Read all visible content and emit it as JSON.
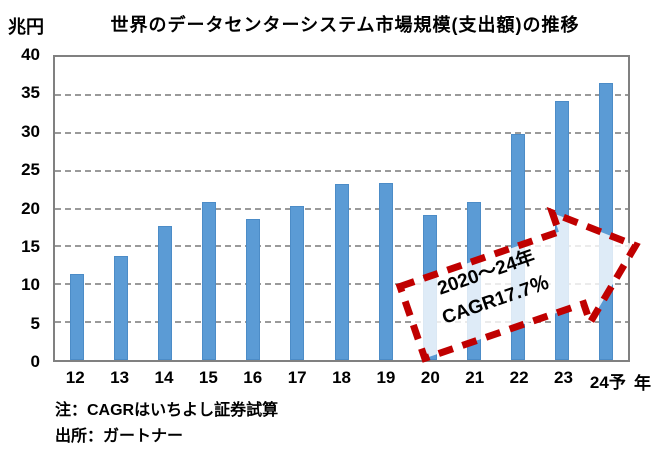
{
  "chart_data": {
    "type": "bar",
    "title": "世界のデータセンターシステム市場規模(支出額)の推移",
    "y_unit": "兆円",
    "x_unit": "年",
    "categories": [
      "12",
      "13",
      "14",
      "15",
      "16",
      "17",
      "18",
      "19",
      "20",
      "21",
      "22",
      "23",
      "24予"
    ],
    "values": [
      11.3,
      13.7,
      17.7,
      20.8,
      18.6,
      20.3,
      23.2,
      23.4,
      19.1,
      20.8,
      29.9,
      34.2,
      36.6
    ],
    "ylim": [
      0,
      40
    ],
    "ytick_step": 5,
    "bar_color": "#5B9BD5",
    "grid": true,
    "legend": "none"
  },
  "annotation": {
    "lines": [
      "2020〜24年",
      "CAGR17.7％"
    ],
    "color": "#C00000"
  },
  "notes": [
    "注：CAGRはいちよし証券試算",
    "出所：ガートナー"
  ]
}
